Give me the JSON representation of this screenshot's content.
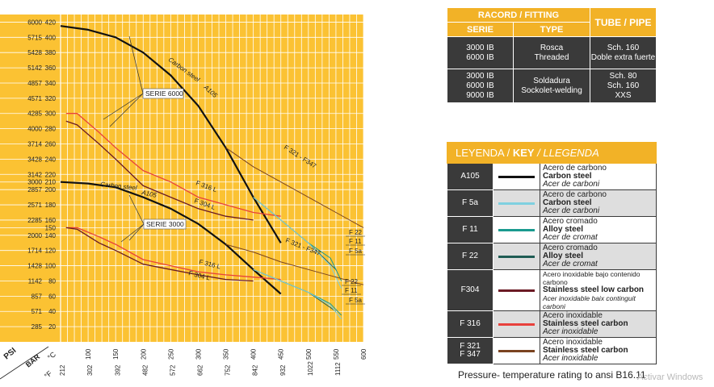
{
  "chart_data": {
    "type": "line",
    "title": "",
    "y_axis_units": [
      "PSI",
      "BAR"
    ],
    "x_axis_units": [
      "°C",
      "°F"
    ],
    "celsius_ticks": [
      "100",
      "150",
      "200",
      "250",
      "300",
      "350",
      "400",
      "450",
      "500",
      "550",
      "600"
    ],
    "fahrenheit_ticks": [
      "212",
      "302",
      "392",
      "482",
      "572",
      "662",
      "752",
      "842",
      "932",
      "1022",
      "1112"
    ],
    "y_ticks": [
      {
        "bar": 420,
        "psi": "6000",
        "bar_label": "420"
      },
      {
        "bar": 400,
        "psi": "5715",
        "bar_label": "400"
      },
      {
        "bar": 380,
        "psi": "5428",
        "bar_label": "380"
      },
      {
        "bar": 360,
        "psi": "5142",
        "bar_label": "360"
      },
      {
        "bar": 340,
        "psi": "4857",
        "bar_label": "340"
      },
      {
        "bar": 320,
        "psi": "4571",
        "bar_label": "320"
      },
      {
        "bar": 300,
        "psi": "4285",
        "bar_label": "300"
      },
      {
        "bar": 280,
        "psi": "4000",
        "bar_label": "280"
      },
      {
        "bar": 260,
        "psi": "3714",
        "bar_label": "260"
      },
      {
        "bar": 240,
        "psi": "3428",
        "bar_label": "240"
      },
      {
        "bar": 220,
        "psi": "3142",
        "bar_label": "220"
      },
      {
        "bar": 210,
        "psi": "3000",
        "bar_label": "210"
      },
      {
        "bar": 200,
        "psi": "2857",
        "bar_label": "200"
      },
      {
        "bar": 180,
        "psi": "2571",
        "bar_label": "180"
      },
      {
        "bar": 160,
        "psi": "2285",
        "bar_label": "160"
      },
      {
        "bar": 150,
        "psi": "",
        "bar_label": "150"
      },
      {
        "bar": 140,
        "psi": "2000",
        "bar_label": "140"
      },
      {
        "bar": 120,
        "psi": "1714",
        "bar_label": "120"
      },
      {
        "bar": 100,
        "psi": "1428",
        "bar_label": "100"
      },
      {
        "bar": 80,
        "psi": "1142",
        "bar_label": "80"
      },
      {
        "bar": 60,
        "psi": "857",
        "bar_label": "60"
      },
      {
        "bar": 40,
        "psi": "571",
        "bar_label": "40"
      },
      {
        "bar": 20,
        "psi": "285",
        "bar_label": "20"
      }
    ],
    "xlim": [
      50,
      600
    ],
    "ylim": [
      0,
      430
    ],
    "grid": true,
    "series": [
      {
        "group": "6000",
        "name": "Carbon steel A105",
        "color": "#111111",
        "width": 2.2,
        "points": [
          [
            50,
            415
          ],
          [
            100,
            410
          ],
          [
            150,
            400
          ],
          [
            200,
            380
          ],
          [
            250,
            350
          ],
          [
            300,
            310
          ],
          [
            350,
            255
          ],
          [
            400,
            190
          ],
          [
            450,
            130
          ]
        ]
      },
      {
        "group": "6000",
        "name": "F 316 L",
        "color": "#e8413c",
        "width": 1.3,
        "points": [
          [
            60,
            300
          ],
          [
            80,
            300
          ],
          [
            120,
            275
          ],
          [
            150,
            255
          ],
          [
            200,
            225
          ],
          [
            250,
            210
          ],
          [
            300,
            190
          ],
          [
            350,
            180
          ],
          [
            400,
            170
          ],
          [
            450,
            165
          ]
        ]
      },
      {
        "group": "6000",
        "name": "F 304 L",
        "color": "#6b1a24",
        "width": 1.3,
        "points": [
          [
            60,
            290
          ],
          [
            80,
            285
          ],
          [
            120,
            260
          ],
          [
            150,
            240
          ],
          [
            200,
            205
          ],
          [
            250,
            190
          ],
          [
            300,
            175
          ],
          [
            350,
            165
          ],
          [
            400,
            160
          ]
        ]
      },
      {
        "group": "6000",
        "name": "F 321 - F347",
        "color": "#7a4320",
        "width": 1.0,
        "points": [
          [
            350,
            255
          ],
          [
            400,
            230
          ],
          [
            450,
            210
          ],
          [
            500,
            190
          ],
          [
            550,
            170
          ],
          [
            600,
            150
          ]
        ]
      },
      {
        "group": "6000",
        "name": "F 22",
        "color": "#1f5c54",
        "width": 1.0,
        "points": [
          [
            400,
            190
          ],
          [
            450,
            160
          ],
          [
            500,
            130
          ],
          [
            550,
            95
          ]
        ]
      },
      {
        "group": "6000",
        "name": "F 11",
        "color": "#1a9a8f",
        "width": 1.0,
        "points": [
          [
            400,
            190
          ],
          [
            450,
            160
          ],
          [
            500,
            130
          ],
          [
            540,
            110
          ],
          [
            560,
            80
          ]
        ]
      },
      {
        "group": "6000",
        "name": "F 5a",
        "color": "#7fd0e0",
        "width": 1.0,
        "points": [
          [
            400,
            190
          ],
          [
            450,
            160
          ],
          [
            500,
            130
          ],
          [
            540,
            100
          ],
          [
            560,
            70
          ]
        ]
      },
      {
        "group": "3000",
        "name": "Carbon steel A105",
        "color": "#111111",
        "width": 2.2,
        "points": [
          [
            50,
            210
          ],
          [
            100,
            208
          ],
          [
            150,
            203
          ],
          [
            200,
            190
          ],
          [
            250,
            175
          ],
          [
            300,
            155
          ],
          [
            350,
            128
          ],
          [
            400,
            95
          ],
          [
            450,
            63
          ]
        ]
      },
      {
        "group": "3000",
        "name": "F 316 L",
        "color": "#e8413c",
        "width": 1.3,
        "points": [
          [
            60,
            150
          ],
          [
            80,
            150
          ],
          [
            120,
            138
          ],
          [
            150,
            128
          ],
          [
            200,
            108
          ],
          [
            250,
            100
          ],
          [
            300,
            92
          ],
          [
            350,
            88
          ],
          [
            400,
            85
          ],
          [
            450,
            82
          ]
        ]
      },
      {
        "group": "3000",
        "name": "F 304 L",
        "color": "#6b1a24",
        "width": 1.3,
        "points": [
          [
            60,
            150
          ],
          [
            80,
            148
          ],
          [
            120,
            130
          ],
          [
            150,
            120
          ],
          [
            200,
            102
          ],
          [
            250,
            95
          ],
          [
            300,
            88
          ],
          [
            350,
            82
          ],
          [
            400,
            80
          ]
        ]
      },
      {
        "group": "3000",
        "name": "F 321 - F347",
        "color": "#7a4320",
        "width": 1.0,
        "points": [
          [
            350,
            128
          ],
          [
            400,
            118
          ],
          [
            450,
            105
          ],
          [
            500,
            95
          ],
          [
            550,
            85
          ],
          [
            600,
            75
          ]
        ]
      },
      {
        "group": "3000",
        "name": "F 22",
        "color": "#1f5c54",
        "width": 1.0,
        "points": [
          [
            400,
            95
          ],
          [
            450,
            80
          ],
          [
            500,
            65
          ],
          [
            550,
            40
          ]
        ]
      },
      {
        "group": "3000",
        "name": "F 11",
        "color": "#1a9a8f",
        "width": 1.0,
        "points": [
          [
            400,
            95
          ],
          [
            450,
            80
          ],
          [
            500,
            65
          ],
          [
            540,
            50
          ],
          [
            560,
            35
          ]
        ]
      },
      {
        "group": "3000",
        "name": "F 5a",
        "color": "#7fd0e0",
        "width": 1.0,
        "points": [
          [
            400,
            95
          ],
          [
            450,
            80
          ],
          [
            500,
            65
          ],
          [
            540,
            48
          ],
          [
            560,
            30
          ]
        ]
      }
    ],
    "annotations": {
      "serie_6000": "SERIE 6000",
      "serie_3000": "SERIE 3000",
      "cs_6000_label": "Carbon steel",
      "a105_6000_label": "A105",
      "cs_3000_label": "Carbon steel",
      "a105_3000_label": "A105",
      "f316_6000": "F 316 L",
      "f304_6000": "F 304 L",
      "f321_6000": "F 321 - F347",
      "f316_3000": "F 316 L",
      "f304_3000": "F 304 L",
      "f321_3000": "F 321 - F347",
      "f22_6000": "F 22",
      "f11_6000": "F 11",
      "f5a_6000": "F 5a",
      "f22_3000": "F 22",
      "f11_3000": "F 11",
      "f5a_3000": "F 5a"
    }
  },
  "fitting_table": {
    "header_racord": "RACORD / FITTING",
    "header_tube": "TUBE / PIPE",
    "header_serie": "SERIE",
    "header_type": "TYPE",
    "row1": {
      "serie": "3000 IB\n6000 IB",
      "type": "Rosca\nThreaded",
      "tube": "Sch. 160\nDoble extra fuerte"
    },
    "row2": {
      "serie": "3000 IB\n6000 IB\n9000 IB",
      "type": "Soldadura\nSockolet-welding",
      "tube": "Sch. 80\nSch. 160\nXXS"
    }
  },
  "legend": {
    "title_a": "LEYENDA / ",
    "title_b": "KEY",
    "title_c": " / LLEGENDA",
    "rows": [
      {
        "code": "A105",
        "color": "#111111",
        "l1": "Acero de carbono",
        "l2": "Carbon steel",
        "l3": "Acer de carboni"
      },
      {
        "code": "F 5a",
        "color": "#7fd0e0",
        "l1": "Acero de carbono",
        "l2": "Carbon steel",
        "l3": "Acer de carboni"
      },
      {
        "code": "F 11",
        "color": "#1a9a8f",
        "l1": "Acero cromado",
        "l2": "Alloy steel",
        "l3": "Acer de cromat"
      },
      {
        "code": "F 22",
        "color": "#1f5c54",
        "l1": "Acero cromado",
        "l2": "Alloy steel",
        "l3": "Acer de cromat"
      },
      {
        "code": "F304",
        "color": "#6b1a24",
        "l1": "Acero inoxidable bajo contenido carbono",
        "l2": "Stainless steel low carbon",
        "l3": "Acer inoxidable baix continguit carboni"
      },
      {
        "code": "F 316",
        "color": "#e8413c",
        "l1": "Acero inoxidable",
        "l2": "Stainless steel carbon",
        "l3": "Acer inoxidable"
      },
      {
        "code": "F 321\nF 347",
        "color": "#7a4320",
        "l1": "Acero inoxidable",
        "l2": "Stainless steel carbon",
        "l3": "Acer inoxidable"
      }
    ]
  },
  "caption": "Pressure- temperature rating to ansi B16.11",
  "watermark": "Activar Windows",
  "colors": {
    "grid_bg": "#fbc233",
    "grid_line": "#ffffff",
    "header_accent": "#f2b227",
    "dark_cell": "#3a3a3a"
  }
}
